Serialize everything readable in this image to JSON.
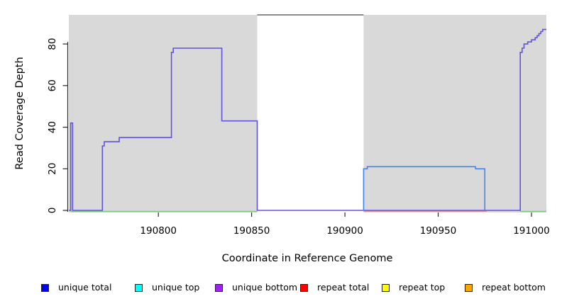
{
  "figure": {
    "title": "",
    "xlabel": "Coordinate in Reference Genome",
    "ylabel": "Read Coverage Depth"
  },
  "chart_data": {
    "type": "line",
    "subtype": "step-coverage",
    "title": "",
    "xlabel": "Coordinate in Reference Genome",
    "ylabel": "Read Coverage Depth",
    "xlim": [
      190752,
      191008
    ],
    "ylim": [
      0,
      94
    ],
    "x_ticks": [
      190800,
      190850,
      190900,
      190950,
      191000
    ],
    "y_ticks": [
      0,
      20,
      40,
      60,
      80
    ],
    "grid": false,
    "plot_background": "#ffffff",
    "covered_region_color": "#d9d9d9",
    "background_regions": [
      {
        "name": "covered-region-left",
        "x0": 190752,
        "x1": 190853,
        "color": "#d9d9d9"
      },
      {
        "name": "uncovered-gap-region",
        "x0": 190853,
        "x1": 190910,
        "color": "#ffffff"
      },
      {
        "name": "covered-region-right",
        "x0": 190910,
        "x1": 191008,
        "color": "#d9d9d9"
      }
    ],
    "gap_top_clip_line": {
      "x0": 190853,
      "x1": 190910,
      "value": 94,
      "color": "#8c8c8c"
    },
    "series": [
      {
        "name": "zero-baseline-green-left",
        "color": "#82c882",
        "width": 1.4,
        "dy": 1.5,
        "values": [
          [
            190753,
            0
          ],
          [
            190853,
            0
          ]
        ]
      },
      {
        "name": "zero-baseline-green-right",
        "color": "#82c882",
        "width": 1.4,
        "dy": 1.5,
        "values": [
          [
            190994,
            0
          ],
          [
            191008,
            0
          ]
        ]
      },
      {
        "name": "unique-bottom-coverage",
        "color": "#6053dd",
        "width": 1.6,
        "dy": 0,
        "values": [
          [
            190752,
            0
          ],
          [
            190753,
            0
          ],
          [
            190753,
            42
          ],
          [
            190754,
            42
          ],
          [
            190754,
            0
          ],
          [
            190770,
            0
          ],
          [
            190770,
            31
          ],
          [
            190771,
            31
          ],
          [
            190771,
            33
          ],
          [
            190779,
            33
          ],
          [
            190779,
            35
          ],
          [
            190807,
            35
          ],
          [
            190807,
            76
          ],
          [
            190808,
            76
          ],
          [
            190808,
            78
          ],
          [
            190834,
            78
          ],
          [
            190834,
            43
          ],
          [
            190853,
            43
          ],
          [
            190853,
            0
          ],
          [
            190994,
            0
          ],
          [
            190994,
            76
          ],
          [
            190995,
            76
          ],
          [
            190995,
            78
          ],
          [
            190996,
            78
          ],
          [
            190996,
            80
          ],
          [
            190998,
            80
          ],
          [
            190998,
            81
          ],
          [
            191000,
            81
          ],
          [
            191000,
            82
          ],
          [
            191002,
            82
          ],
          [
            191002,
            83
          ],
          [
            191003,
            83
          ],
          [
            191003,
            84
          ],
          [
            191004,
            84
          ],
          [
            191004,
            85
          ],
          [
            191005,
            85
          ],
          [
            191005,
            86
          ],
          [
            191006,
            86
          ],
          [
            191006,
            87
          ],
          [
            191008,
            87
          ]
        ]
      },
      {
        "name": "repeat-total-zero-line",
        "color": "#e05555",
        "width": 1.4,
        "dy": 0.8,
        "values": [
          [
            190910,
            0
          ],
          [
            190976,
            0
          ]
        ]
      },
      {
        "name": "unique-total-plateau",
        "color": "#4285f4",
        "width": 1.6,
        "dy": 0,
        "values": [
          [
            190910,
            0
          ],
          [
            190910,
            20
          ],
          [
            190912,
            20
          ],
          [
            190912,
            21
          ],
          [
            190970,
            21
          ],
          [
            190970,
            20
          ],
          [
            190975,
            20
          ],
          [
            190975,
            0
          ]
        ]
      }
    ],
    "legend_position": "bottom",
    "legend": [
      {
        "label": "unique total",
        "color": "#0000ff"
      },
      {
        "label": "unique top",
        "color": "#00ffff"
      },
      {
        "label": "unique bottom",
        "color": "#a020f0"
      },
      {
        "label": "repeat total",
        "color": "#ff0000"
      },
      {
        "label": "repeat top",
        "color": "#ffff00"
      },
      {
        "label": "repeat bottom",
        "color": "#ffa500"
      }
    ]
  },
  "axis": {
    "tick_color": "#2a2a2a",
    "text_color": "#000000"
  }
}
